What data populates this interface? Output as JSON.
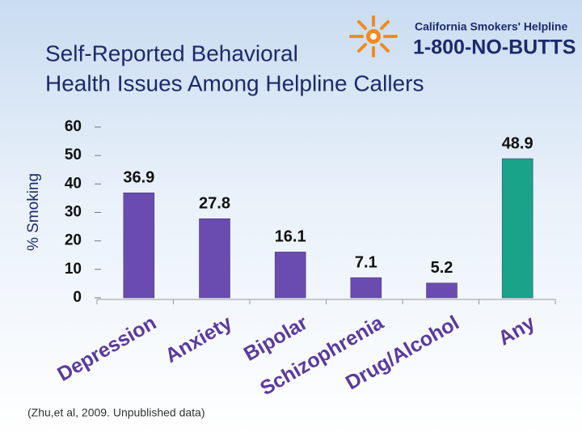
{
  "logo": {
    "line1": "California Smokers' Helpline",
    "line2": "1-800-NO-BUTTS"
  },
  "source": "(Zhu,et al, 2009. Unpublished data)",
  "chart_data": {
    "type": "bar",
    "title": [
      "Self-Reported Behavioral",
      "Health Issues Among Helpline Callers"
    ],
    "y_label": "% Smoking",
    "categories": [
      "Depression",
      "Anxiety",
      "Bipolar",
      "Schizophrenia",
      "Drug/Alcohol",
      "Any"
    ],
    "values": [
      36.9,
      27.8,
      16.1,
      7.1,
      5.2,
      48.9
    ],
    "colors": [
      "#6a4cb0",
      "#6a4cb0",
      "#6a4cb0",
      "#6a4cb0",
      "#6a4cb0",
      "#19a389"
    ],
    "ylim": [
      0,
      60
    ],
    "yticks": [
      0,
      10,
      20,
      30,
      40,
      50,
      60
    ]
  }
}
